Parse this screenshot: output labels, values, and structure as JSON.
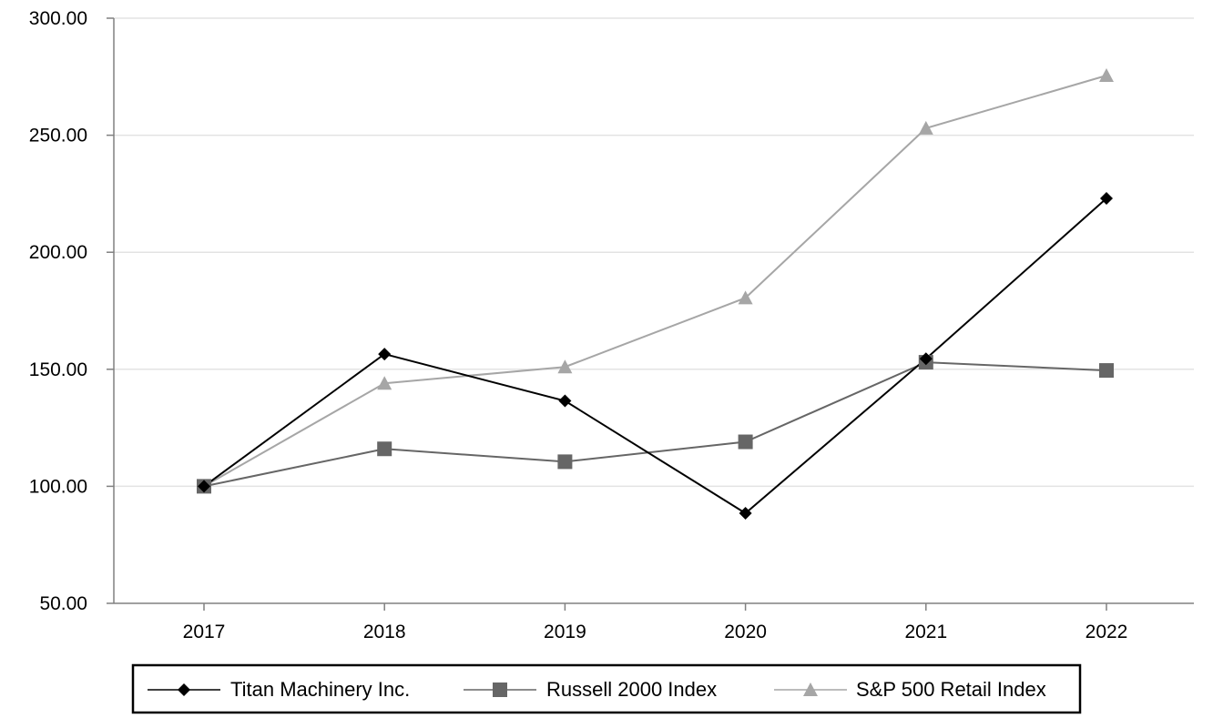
{
  "chart_data": {
    "type": "line",
    "title": "",
    "xlabel": "",
    "ylabel": "",
    "categories": [
      "2017",
      "2018",
      "2019",
      "2020",
      "2021",
      "2022"
    ],
    "ylim": [
      50,
      300
    ],
    "y_ticks": [
      "50.00",
      "100.00",
      "150.00",
      "200.00",
      "250.00",
      "300.00"
    ],
    "grid": "horizontal",
    "legend_position": "bottom",
    "series": [
      {
        "name": "Titan Machinery Inc.",
        "values": [
          100.0,
          156.5,
          136.5,
          88.5,
          154.5,
          223.0
        ],
        "color": "#000000",
        "marker": "diamond"
      },
      {
        "name": "Russell 2000 Index",
        "values": [
          100.0,
          116.0,
          110.5,
          119.0,
          153.0,
          149.5
        ],
        "color": "#666666",
        "marker": "square"
      },
      {
        "name": "S&P 500 Retail Index",
        "values": [
          100.0,
          144.0,
          151.0,
          180.5,
          253.0,
          275.5
        ],
        "color": "#a6a6a6",
        "marker": "triangle"
      }
    ]
  }
}
